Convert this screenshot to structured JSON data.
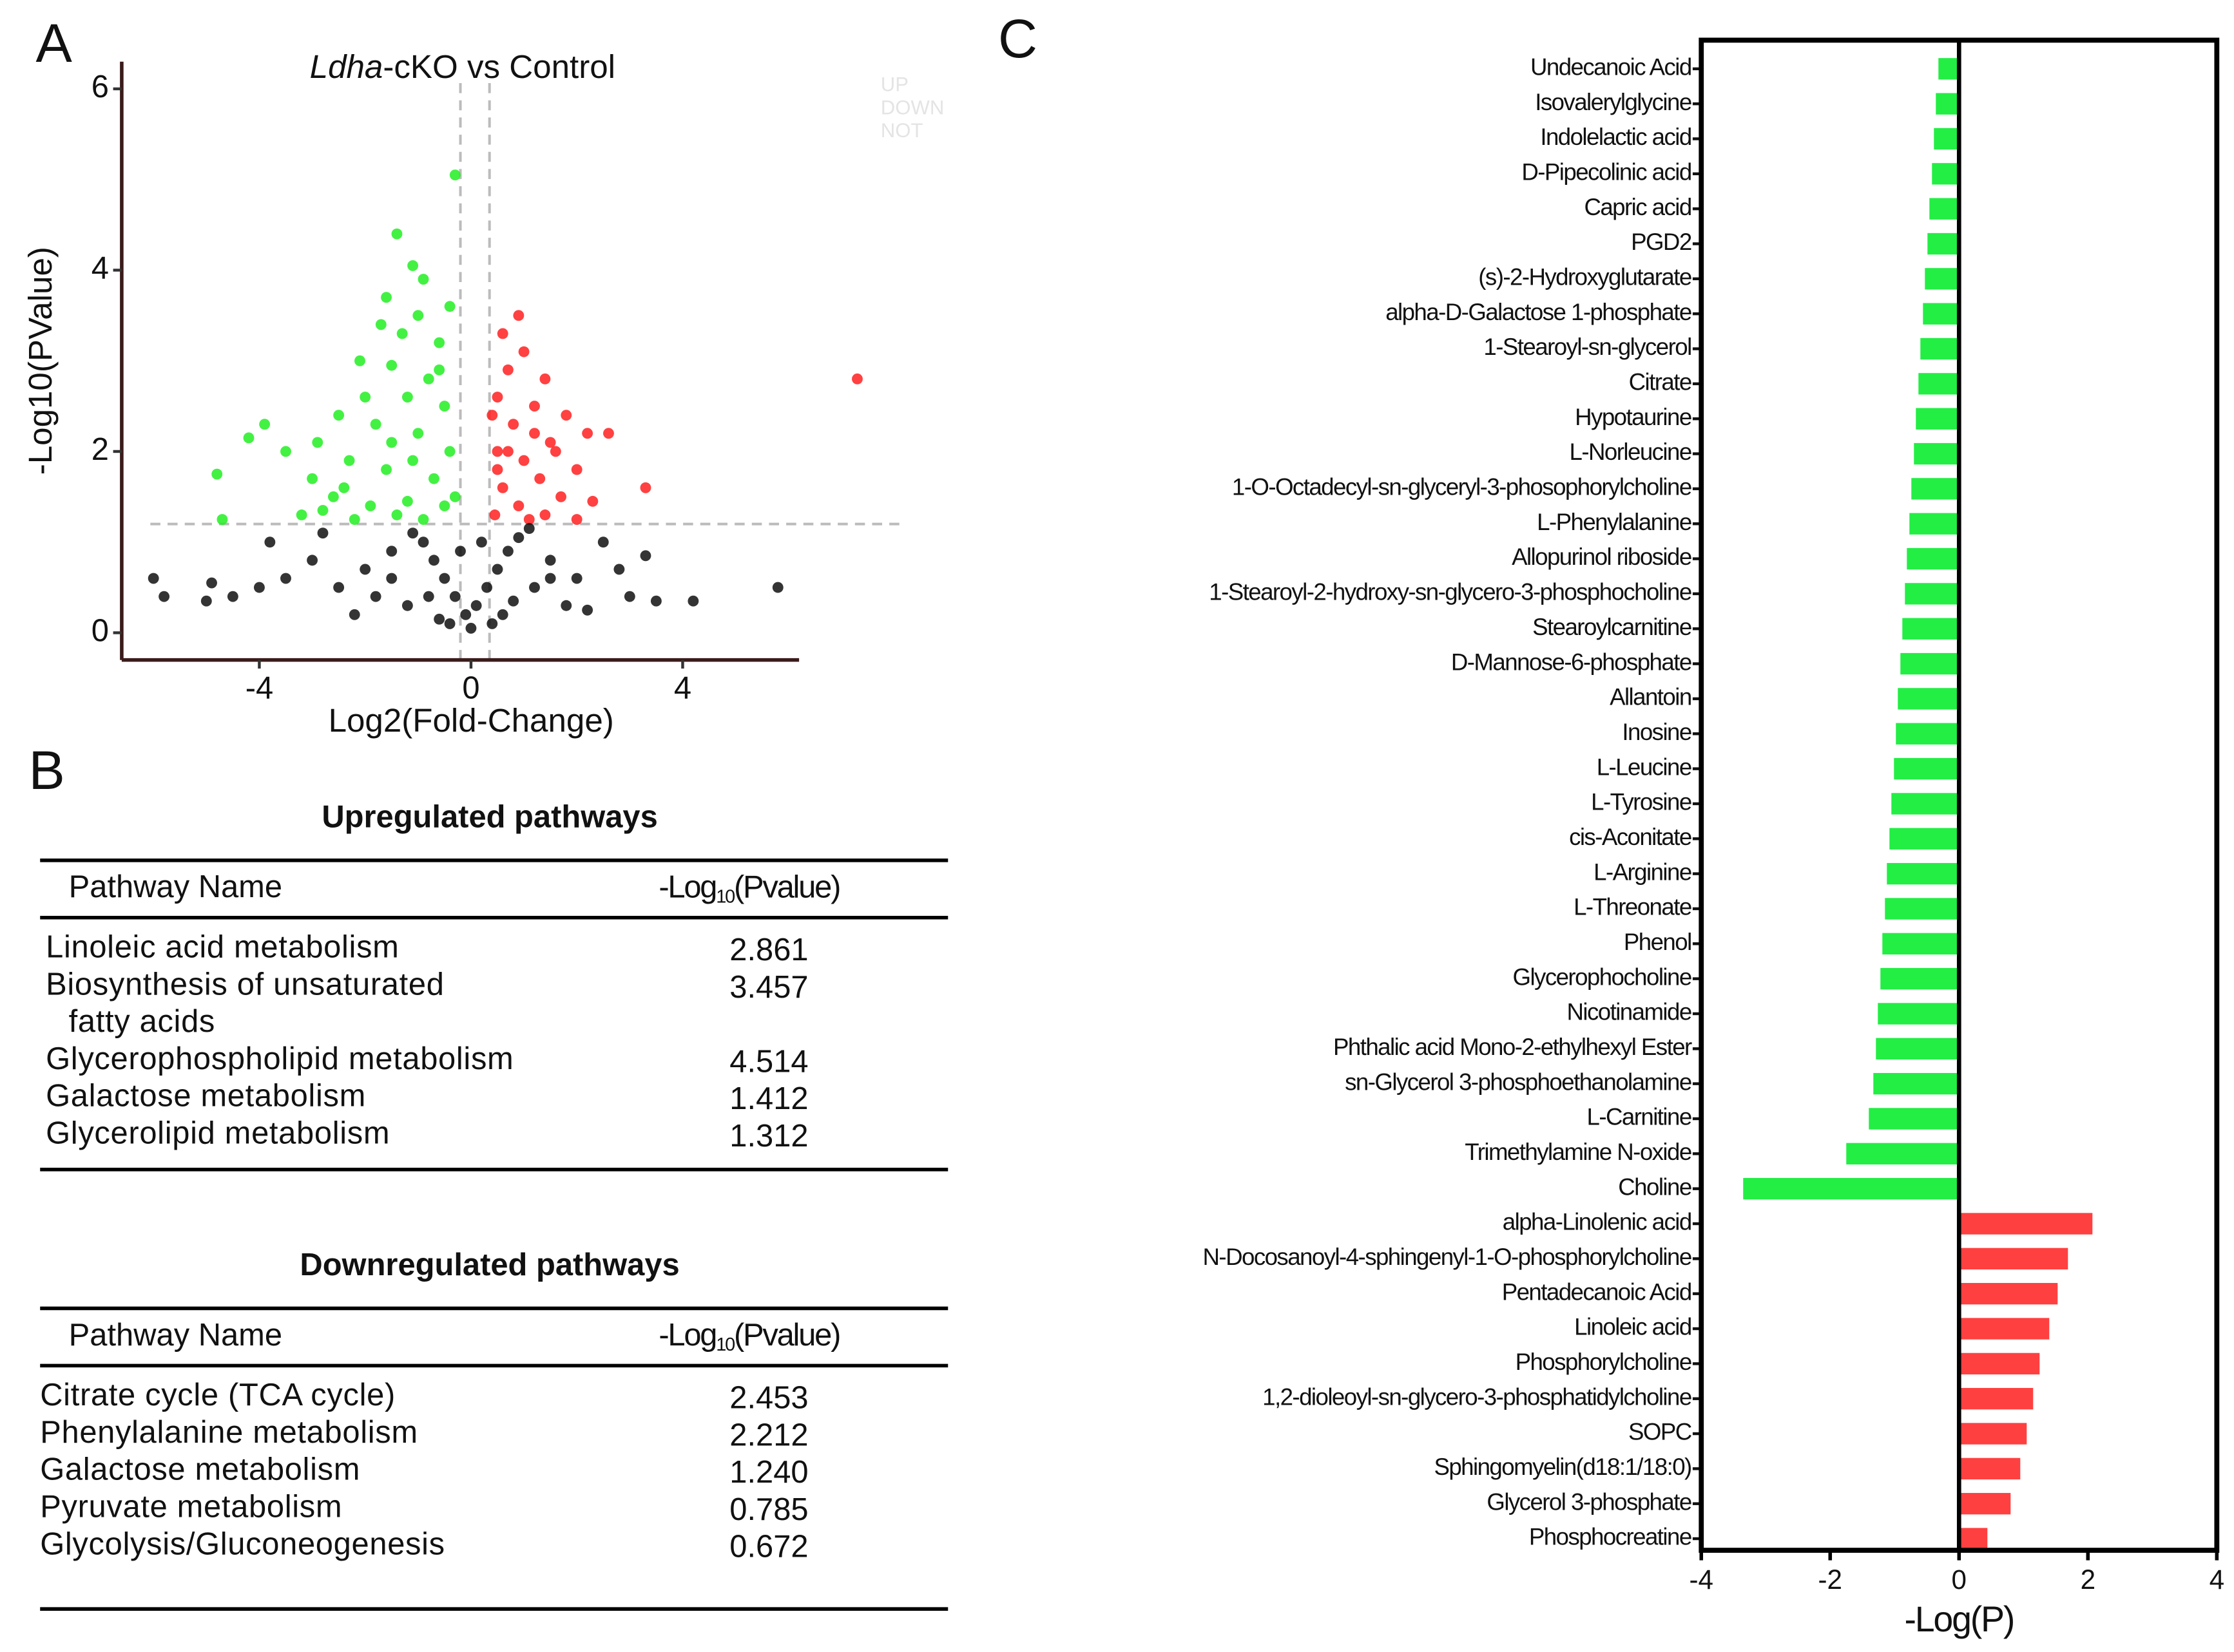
{
  "panels": [
    "A",
    "B",
    "C"
  ],
  "chart_data": [
    {
      "type": "scatter",
      "title": [
        {
          "text": "Ldha",
          "italic": true
        },
        {
          "text": "-cKO vs Control",
          "italic": false
        }
      ],
      "xlabel": "Log2(Fold-Change)",
      "ylabel": "-Log10(PValue)",
      "xlim": [
        -6.6,
        6.2
      ],
      "xticks": [
        -4,
        0,
        4
      ],
      "ylim": [
        -0.3,
        6.3
      ],
      "yticks": [
        0,
        2,
        4,
        6
      ],
      "hlines": [
        1.2
      ],
      "vlines": [
        -0.2,
        0.35
      ],
      "series": [
        {
          "name": "UP",
          "color": "#ff2020",
          "x": [
            0.9,
            0.6,
            1.0,
            0.7,
            1.4,
            0.5,
            1.2,
            1.8,
            0.8,
            2.2,
            2.6,
            1.5,
            0.5,
            1.0,
            2.0,
            1.3,
            0.6,
            3.3,
            1.7,
            2.3,
            0.9,
            0.45,
            1.4,
            2.0,
            1.1,
            7.3,
            0.4,
            0.7,
            1.6,
            0.5,
            1.2
          ],
          "y": [
            3.5,
            3.3,
            3.1,
            2.9,
            2.8,
            2.6,
            2.5,
            2.4,
            2.3,
            2.2,
            2.2,
            2.1,
            2.0,
            1.9,
            1.8,
            1.7,
            1.6,
            1.6,
            1.5,
            1.45,
            1.4,
            1.3,
            1.3,
            1.25,
            1.25,
            2.8,
            2.4,
            2.0,
            2.0,
            1.8,
            2.2
          ]
        },
        {
          "name": "DOWN",
          "color": "#22ee22",
          "x": [
            -0.3,
            -1.4,
            -1.1,
            -0.9,
            -1.6,
            -1.0,
            -1.7,
            -1.3,
            -0.6,
            -2.1,
            -1.5,
            -0.8,
            -2.0,
            -1.2,
            -0.5,
            -2.5,
            -1.8,
            -3.9,
            -4.2,
            -3.5,
            -2.9,
            -1.0,
            -0.4,
            -4.8,
            -3.0,
            -2.3,
            -1.6,
            -0.7,
            -2.6,
            -1.9,
            -1.2,
            -0.5,
            -4.7,
            -3.2,
            -2.2,
            -1.4,
            -0.9,
            -0.3,
            -1.1,
            -2.4,
            -0.6,
            -1.5,
            -2.8,
            -0.4
          ],
          "y": [
            5.05,
            4.4,
            4.05,
            3.9,
            3.7,
            3.5,
            3.4,
            3.3,
            3.2,
            3.0,
            2.95,
            2.8,
            2.6,
            2.6,
            2.5,
            2.4,
            2.3,
            2.3,
            2.15,
            2.0,
            2.1,
            2.2,
            2.0,
            1.75,
            1.7,
            1.9,
            1.8,
            1.7,
            1.5,
            1.4,
            1.45,
            1.4,
            1.25,
            1.3,
            1.25,
            1.3,
            1.25,
            1.5,
            1.9,
            1.6,
            2.9,
            2.1,
            1.35,
            3.6
          ]
        },
        {
          "name": "NOT",
          "color": "#111111",
          "x": [
            0,
            -0.1,
            0.1,
            -0.3,
            0.3,
            -0.5,
            0.5,
            -0.7,
            0.7,
            -0.9,
            0.9,
            -1.1,
            1.1,
            -1.5,
            1.5,
            -2,
            2,
            -2.5,
            2.5,
            -3,
            3,
            -3.5,
            -4,
            -4.5,
            -5.8,
            -6,
            -5,
            3.5,
            4.2,
            5.8,
            3.3,
            -1.8,
            1.8,
            -1.2,
            1.2,
            -0.6,
            0.6,
            -2.8,
            2.8,
            -0.2,
            0.2,
            -3.8,
            -2.2,
            2.2,
            -4.9,
            0.4,
            -0.4,
            -1.5,
            1.5,
            -0.8,
            0.8
          ],
          "y": [
            0.05,
            0.2,
            0.3,
            0.4,
            0.5,
            0.6,
            0.7,
            0.8,
            0.9,
            1.0,
            1.05,
            1.1,
            1.15,
            0.9,
            0.8,
            0.7,
            0.6,
            0.5,
            1.0,
            0.8,
            0.4,
            0.6,
            0.5,
            0.4,
            0.4,
            0.6,
            0.35,
            0.35,
            0.35,
            0.5,
            0.85,
            0.4,
            0.3,
            0.3,
            0.5,
            0.15,
            0.2,
            1.1,
            0.7,
            0.9,
            1.0,
            1.0,
            0.2,
            0.25,
            0.55,
            0.1,
            0.1,
            0.6,
            0.6,
            0.4,
            0.35
          ]
        }
      ]
    },
    {
      "type": "barh",
      "xlabel": "-Log(P)",
      "xlim": [
        -4,
        4
      ],
      "xticks": [
        -4,
        -2,
        0,
        2,
        4
      ],
      "positive_color": "#ff4040",
      "negative_color": "#22ee44",
      "categories": [
        "Undecanoic Acid",
        "Isovalerylglycine",
        "Indolelactic acid",
        "D-Pipecolinic acid",
        "Capric acid",
        "PGD2",
        "(s)-2-Hydroxyglutarate",
        "alpha-D-Galactose 1-phosphate",
        "1-Stearoyl-sn-glycerol",
        "Citrate",
        "Hypotaurine",
        "L-Norleucine",
        "1-O-Octadecyl-sn-glyceryl-3-phosophorylcholine",
        "L-Phenylalanine",
        "Allopurinol riboside",
        "1-Stearoyl-2-hydroxy-sn-glycero-3-phosphocholine",
        "Stearoylcarnitine",
        "D-Mannose-6-phosphate",
        "Allantoin",
        "Inosine",
        "L-Leucine",
        "L-Tyrosine",
        "cis-Aconitate",
        "L-Arginine",
        "L-Threonate",
        "Phenol",
        "Glycerophocholine",
        "Nicotinamide",
        "Phthalic acid Mono-2-ethylhexyl Ester",
        "sn-Glycerol 3-phosphoethanolamine",
        "L-Carnitine",
        "Trimethylamine N-oxide",
        "Choline",
        "alpha-Linolenic acid",
        "N-Docosanoyl-4-sphingenyl-1-O-phosphorylcholine",
        "Pentadecanoic Acid",
        "Linoleic acid",
        "Phosphorylcholine",
        "1,2-dioleoyl-sn-glycero-3-phosphatidylcholine",
        "SOPC",
        "Sphingomyelin(d18:1/18:0)",
        "Glycerol 3-phosphate",
        "Phosphocreatine"
      ],
      "values": [
        -0.32,
        -0.36,
        -0.39,
        -0.42,
        -0.46,
        -0.49,
        -0.53,
        -0.56,
        -0.6,
        -0.63,
        -0.67,
        -0.7,
        -0.74,
        -0.77,
        -0.81,
        -0.84,
        -0.88,
        -0.91,
        -0.95,
        -0.98,
        -1.01,
        -1.05,
        -1.08,
        -1.12,
        -1.15,
        -1.19,
        -1.22,
        -1.26,
        -1.29,
        -1.33,
        -1.4,
        -1.75,
        -3.35,
        2.07,
        1.69,
        1.53,
        1.4,
        1.25,
        1.15,
        1.05,
        0.95,
        0.8,
        0.44
      ]
    }
  ],
  "tables": [
    {
      "title": "Upregulated pathways",
      "header": {
        "name": "Pathway Name",
        "value": {
          "main": "-Log",
          "sub": "10",
          "tail": "(Pvalue)"
        }
      },
      "rows": [
        {
          "name": [
            "Linoleic acid metabolism"
          ],
          "value": "2.861"
        },
        {
          "name": [
            "Biosynthesis of unsaturated",
            "fatty acids"
          ],
          "value": "3.457"
        },
        {
          "name": [
            "Glycerophospholipid metabolism"
          ],
          "value": "4.514"
        },
        {
          "name": [
            "Galactose metabolism"
          ],
          "value": "1.412"
        },
        {
          "name": [
            "Glycerolipid metabolism"
          ],
          "value": "1.312"
        }
      ]
    },
    {
      "title": "Downregulated pathways",
      "header": {
        "name": "Pathway Name",
        "value": {
          "main": "-Log",
          "sub": "10",
          "tail": "(Pvalue)"
        }
      },
      "rows": [
        {
          "name": [
            "Citrate cycle (TCA cycle)"
          ],
          "value": "2.453"
        },
        {
          "name": [
            "Phenylalanine metabolism"
          ],
          "value": "2.212"
        },
        {
          "name": [
            "Galactose metabolism"
          ],
          "value": "1.240"
        },
        {
          "name": [
            "Pyruvate metabolism"
          ],
          "value": "0.785"
        },
        {
          "name": [
            "Glycolysis/Gluconeogenesis"
          ],
          "value": "0.672"
        }
      ]
    }
  ]
}
